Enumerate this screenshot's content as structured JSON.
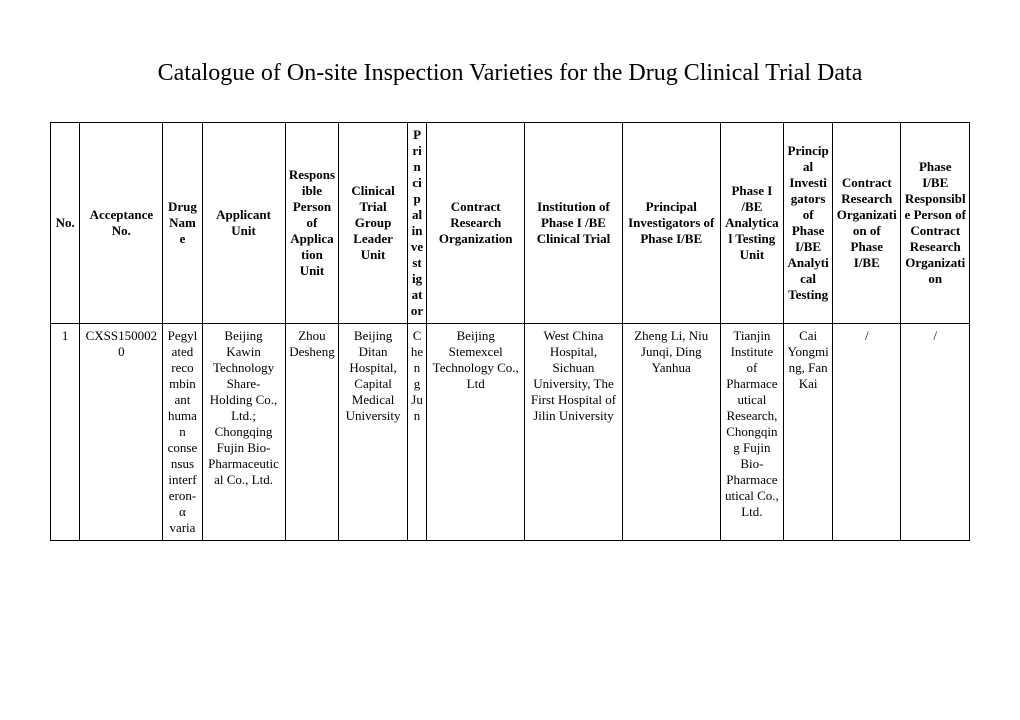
{
  "title": "Catalogue of On-site Inspection Varieties for the Drug Clinical Trial Data",
  "headers": {
    "no": "No.",
    "acceptance": "Acceptance No.",
    "drug": "Drug Name",
    "applicant": "Applicant Unit",
    "responsible": "Responsible Person of Application Unit",
    "ctg": "Clinical Trial Group Leader Unit",
    "pi": "Principal investigator",
    "cro": "Contract Research Organization",
    "inst": "Institution of Phase I /BE Clinical Trial",
    "pi1be": "Principal Investigators of Phase I/BE",
    "atu": "Phase I /BE Analytical Testing Unit",
    "piat": "Principal Investigators of Phase I/BE Analytical Testing",
    "cro1be": "Contract Research Organization of Phase I/BE",
    "respcro": "Phase I/BE Responsible Person of Contract Research Organization"
  },
  "row": {
    "no": "1",
    "acceptance": "CXSS1500020",
    "drug": "Pegylated recombinant human consensus interferon-α varia",
    "applicant": "Beijing Kawin Technology Share-Holding Co., Ltd.; Chongqing Fujin Bio-Pharmaceutical Co., Ltd.",
    "responsible": "Zhou Desheng",
    "ctg": "Beijing Ditan Hospital, Capital Medical University",
    "pi": "Cheng Jun",
    "cro": "Beijing Stemexcel Technology Co., Ltd",
    "inst": "West China Hospital, Sichuan University, The First Hospital of Jilin University",
    "pi1be": "Zheng Li, Niu Junqi, Ding Yanhua",
    "atu": "Tianjin Institute of Pharmaceutical Research, Chongqing Fujin Bio-Pharmaceutical Co., Ltd.",
    "piat": "Cai Yongming, Fan Kai",
    "cro1be": "/",
    "respcro": "/"
  },
  "style": {
    "background_color": "#ffffff",
    "text_color": "#000000",
    "border_color": "#000000",
    "title_fontsize": 24,
    "cell_fontsize": 13,
    "font_family": "Times New Roman"
  }
}
